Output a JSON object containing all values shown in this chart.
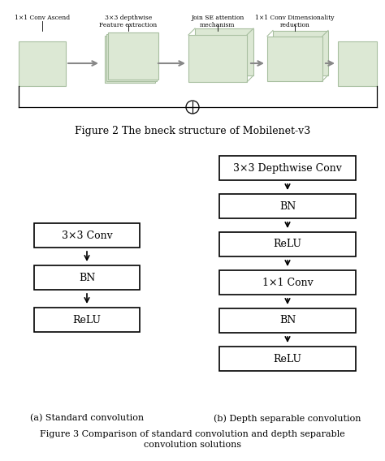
{
  "title_fig2": "Figure 2 The bneck structure of Mobilenet-v3",
  "title_fig3_line1": "Figure 3 Comparison of standard convolution and depth separable",
  "title_fig3_line2": "convolution solutions",
  "label_a": "(a) Standard convolution",
  "label_b": "(b) Depth separable convolution",
  "top_labels": [
    "1×1 Conv Ascend",
    "3×3 depthwise\nFeature extraction",
    "Join SE attention\nmechanism",
    "1×1 Conv Dimensionality\nreduction"
  ],
  "left_labels": [
    "3×3 Conv",
    "BN",
    "ReLU"
  ],
  "right_labels": [
    "3×3 Depthwise Conv",
    "BN",
    "ReLU",
    "1×1 Conv",
    "BN",
    "ReLU"
  ],
  "bg_color": "#ffffff",
  "box_facecolor": "#ffffff",
  "box_edgecolor": "#000000",
  "top_box_color": "#dce8d4",
  "top_box_edge": "#a8bfa0"
}
